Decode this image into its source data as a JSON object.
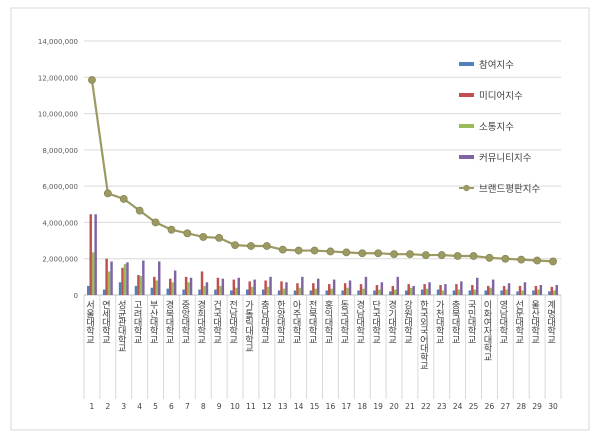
{
  "chart_data": {
    "type": "bar",
    "combo_line_series": "브랜드평판지수",
    "categories": [
      "서울대학교",
      "연세대학교",
      "성균관대학교",
      "고려대학교",
      "부산대학교",
      "경북대학교",
      "중앙대학교",
      "경희대학교",
      "건국대학교",
      "전남대학교",
      "가톨릭대학교",
      "충남대학교",
      "한양대학교",
      "아주대학교",
      "전북대학교",
      "홍익대학교",
      "동국대학교",
      "경남대학교",
      "단국대학교",
      "경기대학교",
      "강원대학교",
      "한국외국어대학교",
      "가천대학교",
      "충북대학교",
      "국민대학교",
      "이화여자대학교",
      "영남대학교",
      "선문대학교",
      "울산대학교",
      "계명대학교"
    ],
    "ranks": [
      "1",
      "2",
      "3",
      "4",
      "5",
      "6",
      "7",
      "8",
      "9",
      "10",
      "11",
      "12",
      "13",
      "14",
      "15",
      "16",
      "17",
      "18",
      "19",
      "20",
      "21",
      "22",
      "23",
      "24",
      "25",
      "26",
      "27",
      "28",
      "29",
      "30"
    ],
    "series": [
      {
        "name": "참여지수",
        "color": "#4f81bd",
        "values": [
          500000,
          300000,
          700000,
          500000,
          400000,
          350000,
          300000,
          300000,
          300000,
          250000,
          300000,
          300000,
          250000,
          250000,
          250000,
          250000,
          250000,
          250000,
          250000,
          200000,
          250000,
          300000,
          300000,
          250000,
          250000,
          250000,
          250000,
          200000,
          250000,
          200000
        ]
      },
      {
        "name": "미디어지수",
        "color": "#c0504d",
        "values": [
          4450000,
          2000000,
          1500000,
          1100000,
          1000000,
          900000,
          1000000,
          1300000,
          950000,
          850000,
          750000,
          800000,
          750000,
          650000,
          650000,
          600000,
          650000,
          600000,
          550000,
          500000,
          600000,
          600000,
          550000,
          600000,
          550000,
          500000,
          500000,
          500000,
          500000,
          450000
        ]
      },
      {
        "name": "소통지수",
        "color": "#9bbb59",
        "values": [
          2350000,
          1300000,
          1700000,
          1050000,
          800000,
          700000,
          700000,
          500000,
          500000,
          400000,
          450000,
          450000,
          350000,
          400000,
          350000,
          350000,
          400000,
          350000,
          300000,
          300000,
          400000,
          350000,
          250000,
          300000,
          300000,
          400000,
          300000,
          250000,
          300000,
          250000
        ]
      },
      {
        "name": "커뮤니티지수",
        "color": "#8064a2",
        "values": [
          4450000,
          1850000,
          1800000,
          1900000,
          1850000,
          1350000,
          950000,
          700000,
          900000,
          950000,
          850000,
          1000000,
          700000,
          1000000,
          900000,
          850000,
          800000,
          1000000,
          700000,
          1000000,
          500000,
          700000,
          600000,
          750000,
          950000,
          850000,
          650000,
          700000,
          550000,
          550000
        ]
      }
    ],
    "line": {
      "name": "브랜드평판지수",
      "color": "#9c9a63",
      "values": [
        11850000,
        5600000,
        5300000,
        4650000,
        4000000,
        3600000,
        3400000,
        3200000,
        3150000,
        2750000,
        2700000,
        2700000,
        2500000,
        2450000,
        2450000,
        2400000,
        2350000,
        2300000,
        2300000,
        2250000,
        2250000,
        2200000,
        2200000,
        2150000,
        2150000,
        2050000,
        2000000,
        1950000,
        1900000,
        1850000
      ]
    },
    "ylim": [
      0,
      14000000
    ],
    "yticks": [
      "14,000,000",
      "12,000,000",
      "10,000,000",
      "8,000,000",
      "6,000,000",
      "4,000,000",
      "2,000,000",
      "0"
    ],
    "ytick_values": [
      14000000,
      12000000,
      10000000,
      8000000,
      6000000,
      4000000,
      2000000,
      0
    ],
    "grid": true,
    "legend_placement": "right"
  }
}
